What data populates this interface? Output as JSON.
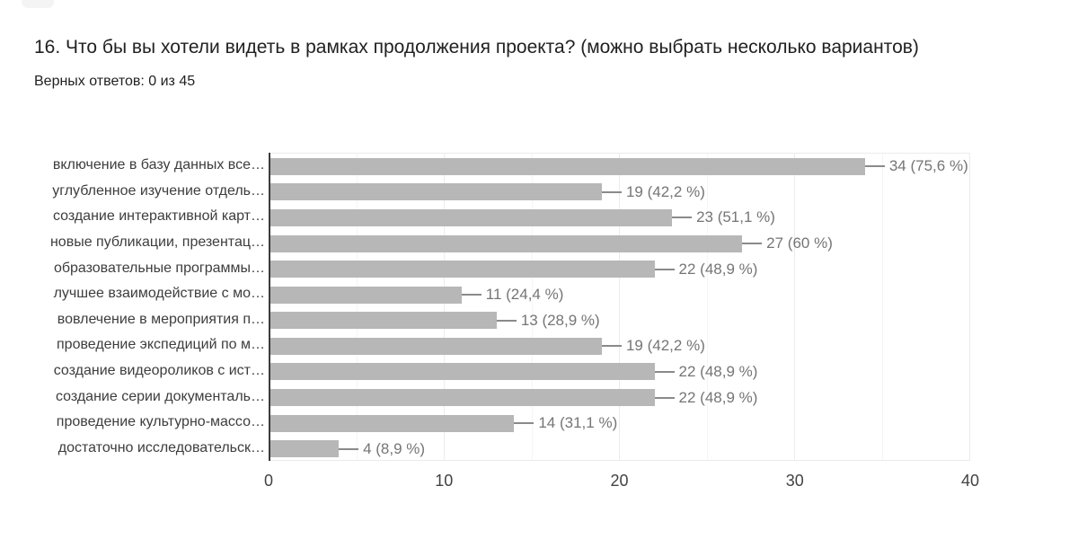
{
  "header": {
    "title": "16. Что бы вы хотели видеть в рамках продолжения проекта? (можно выбрать несколько вариантов)",
    "subtitle": "Верных ответов: 0 из 45"
  },
  "chart_data": {
    "type": "bar",
    "orientation": "horizontal",
    "title": "",
    "categories": [
      "включение в базу данных все…",
      "углубленное изучение отдель…",
      "создание интерактивной карт…",
      "новые публикации, презентац…",
      "образовательные программы…",
      "лучшее взаимодействие с мо…",
      "вовлечение в мероприятия п…",
      "проведение экспедиций по м…",
      "создание видеороликов с ист…",
      "создание серии документаль…",
      "проведение культурно-массо…",
      "достаточно исследовательск…"
    ],
    "values": [
      34,
      19,
      23,
      27,
      22,
      11,
      13,
      19,
      22,
      22,
      14,
      4
    ],
    "value_labels": [
      "34 (75,6 %)",
      "19 (42,2 %)",
      "23 (51,1 %)",
      "27 (60 %)",
      "22 (48,9 %)",
      "11 (24,4 %)",
      "13 (28,9 %)",
      "19 (42,2 %)",
      "22 (48,9 %)",
      "22 (48,9 %)",
      "14 (31,1 %)",
      "4 (8,9 %)"
    ],
    "xlabel": "",
    "ylabel": "",
    "xlim": [
      0,
      40
    ],
    "x_ticks": [
      0,
      10,
      20,
      30,
      40
    ],
    "x_minor_ticks": [
      5,
      15,
      25,
      35
    ],
    "grid": true,
    "legend": "none",
    "colors": {
      "bar": "#b7b7b7",
      "value_label": "#757575",
      "category_label": "#3d3d3d",
      "axis_tick_label": "#424242",
      "major_gridline": "#ececec",
      "minor_gridline": "#f5f5f5",
      "baseline": "#3c3c3c"
    }
  }
}
